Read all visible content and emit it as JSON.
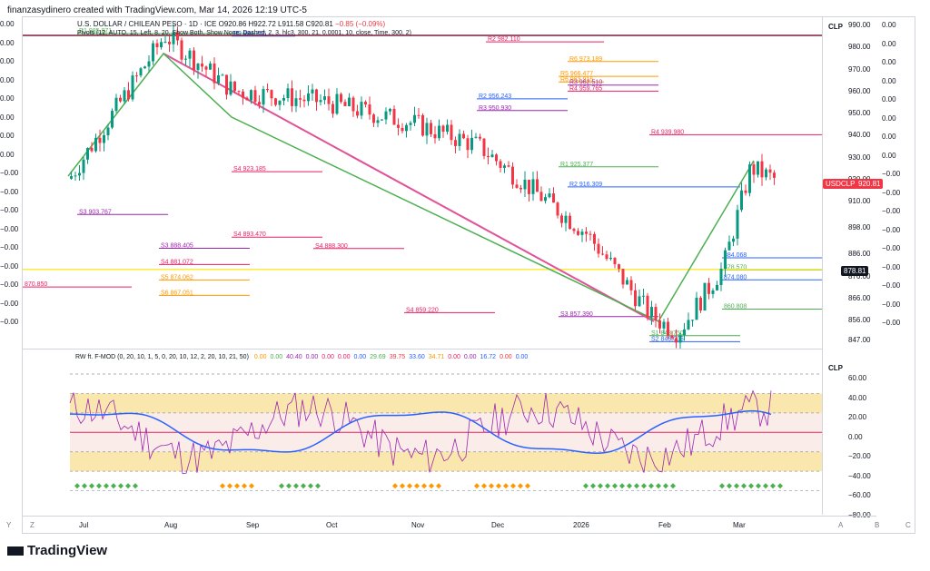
{
  "header": {
    "text": "finanzasydinero created with TradingView.com, Mar 14, 2026 12:19 UTC-5"
  },
  "main_legend": {
    "symbol": "U.S. DOLLAR / CHILEAN PESO · 1D · ICE",
    "ohlc": "O920.86 H922.72 L911.58 C920.81",
    "change": "−0.85 (−0.09%)",
    "pivots": "Pivots (12, AUTO, 15, Left, 8, 20, Show Both, Show None, Dashed, 2, 3, hlc3, 300, 21, 0.0001, 10, close, Time, 300, 2)"
  },
  "indicator_legend": {
    "name": "RW ft. F-MOD (0, 20, 10, 1, 5, 0, 20, 10, 12, 2, 20, 10, 21, 50)",
    "values": [
      "0.00",
      "0.00",
      "40.40",
      "0.00",
      "0.00",
      "0.00",
      "0.00",
      "29.69",
      "39.75",
      "33.60",
      "34.71",
      "0.00",
      "0.00",
      "16.72",
      "0.00",
      "0.00"
    ],
    "value_colors": [
      "#ff9800",
      "#4caf50",
      "#9c27b0",
      "#9c27b0",
      "#e91e63",
      "#e91e63",
      "#2962ff",
      "#4caf50",
      "#f23645",
      "#2962ff",
      "#ff9800",
      "#e91e63",
      "#9c27b0",
      "#2962ff",
      "#f23645",
      "#2962ff"
    ]
  },
  "price_scale": {
    "currency": "CLP",
    "ticks": [
      "990.00",
      "980.00",
      "970.00",
      "960.00",
      "950.00",
      "940.00",
      "930.00",
      "920.00",
      "910.00",
      "898.00",
      "886.00",
      "876.00",
      "866.00",
      "856.00",
      "847.00"
    ],
    "symbol_badge": "USDCLP",
    "last_price": "920.81",
    "crosshair_price": "878.81"
  },
  "indicator_scale": {
    "currency": "CLP",
    "ticks": [
      "60.00",
      "40.00",
      "20.00",
      "0.00",
      "−20.00",
      "−40.00",
      "−60.00",
      "−80.00"
    ]
  },
  "right_column": [
    "0.00",
    "0.00",
    "0.00",
    "0.00",
    "0.00",
    "0.00",
    "0.00",
    "0.00",
    "−0.00",
    "−0.00",
    "−0.00",
    "−0.00",
    "−0.00",
    "−0.00",
    "−0.00",
    "−0.00",
    "−0.00"
  ],
  "left_column": [
    "0.00",
    "0.00",
    "0.00",
    "0.00",
    "0.00",
    "0.00",
    "0.00",
    "0.00",
    "−0.00",
    "−0.00",
    "−0.00",
    "−0.00",
    "−0.00",
    "−0.00",
    "−0.00",
    "−0.00",
    "−0.00"
  ],
  "time_axis": [
    "Jul",
    "Aug",
    "Sep",
    "Oct",
    "Nov",
    "Dec",
    "2026",
    "Feb",
    "Mar"
  ],
  "time_axis_corner": {
    "left": "Y",
    "right_a": "A",
    "right_b": "B",
    "right_c": "C",
    "zoom": "Z"
  },
  "pivot_levels": [
    {
      "label": "R1",
      "value": "985.871",
      "color": "#4caf50"
    },
    {
      "label": "R2",
      "value": "984.745",
      "color": "#2962ff"
    },
    {
      "label": "R2",
      "value": "982.110",
      "color": "#e91e63"
    },
    {
      "label": "R6",
      "value": "973.189",
      "color": "#ff9800"
    },
    {
      "label": "R5",
      "value": "966.477",
      "color": "#ff9800"
    },
    {
      "label": "R6",
      "value": "963.916",
      "color": "#ff9800"
    },
    {
      "label": "R3",
      "value": "962.510",
      "color": "#9c27b0"
    },
    {
      "label": "R4",
      "value": "959.765",
      "color": "#e91e63"
    },
    {
      "label": "R2",
      "value": "956.243",
      "color": "#2962ff"
    },
    {
      "label": "R3",
      "value": "950.930",
      "color": "#9c27b0"
    },
    {
      "label": "R4",
      "value": "939.980",
      "color": "#e91e63"
    },
    {
      "label": "R1",
      "value": "925.377",
      "color": "#4caf50"
    },
    {
      "label": "S4",
      "value": "923.185",
      "color": "#e91e63"
    },
    {
      "label": "R2",
      "value": "916.309",
      "color": "#2962ff"
    },
    {
      "label": "S3",
      "value": "903.767",
      "color": "#9c27b0"
    },
    {
      "label": "S4",
      "value": "893.470",
      "color": "#e91e63"
    },
    {
      "label": "S4",
      "value": "888.300",
      "color": "#e91e63"
    },
    {
      "label": "S3",
      "value": "888.405",
      "color": "#9c27b0"
    },
    {
      "label": "S4",
      "value": "881.072",
      "color": "#e91e63"
    },
    {
      "label": "S5",
      "value": "874.062",
      "color": "#ff9800"
    },
    {
      "label": "S6",
      "value": "867.051",
      "color": "#ff9800"
    },
    {
      "label": "S4",
      "value": "859.220",
      "color": "#e91e63"
    },
    {
      "label": "S3",
      "value": "857.390",
      "color": "#9c27b0"
    },
    {
      "label": "S1",
      "value": "848.750",
      "color": "#4caf50"
    },
    {
      "label": "S2",
      "value": "846.005",
      "color": "#2962ff"
    },
    {
      "label": "",
      "value": "884.068",
      "color": "#2962ff"
    },
    {
      "label": "",
      "value": "878.570",
      "color": "#4caf50"
    },
    {
      "label": "",
      "value": "874.080",
      "color": "#2962ff"
    },
    {
      "label": "",
      "value": "870.850",
      "color": "#e91e63"
    },
    {
      "label": "",
      "value": "860.808",
      "color": "#4caf50"
    }
  ],
  "footer": {
    "logo": "TradingView"
  },
  "colors": {
    "up": "#089981",
    "down": "#f23645",
    "line": "#e05297",
    "green_line": "#4caf50",
    "badge": "#f23645",
    "crosshair": "#ffeb3b"
  }
}
